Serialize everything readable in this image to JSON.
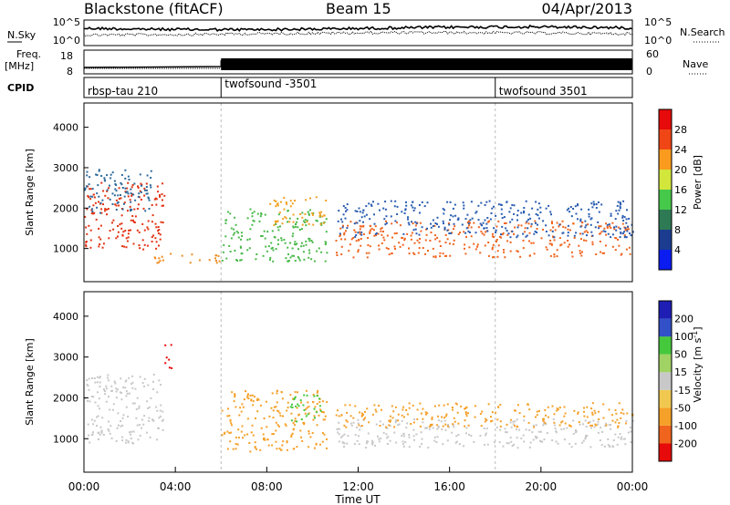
{
  "header": {
    "station": "Blackstone (fitACF)",
    "beam": "Beam 15",
    "date": "04/Apr/2013"
  },
  "strip_labels": {
    "nsky": "N.Sky",
    "nsearch": "N.Search",
    "freq_line1": "Freq.",
    "freq_line2": "[MHz]",
    "nave": "Nave",
    "cpid": "CPID"
  },
  "strip_ticks": {
    "noise_left": [
      "10^5",
      "10^0"
    ],
    "noise_right": [
      "10^5",
      "10^0"
    ],
    "freq_left": [
      "18",
      "8"
    ],
    "nave_right": [
      "60",
      "0"
    ]
  },
  "cpid_segments": [
    {
      "label": "rbsp-tau 210",
      "start_hour": 0
    },
    {
      "label": "twofsound -3501",
      "start_hour": 6
    },
    {
      "label": "twofsound 3501",
      "start_hour": 18
    }
  ],
  "chart_data": [
    {
      "type": "heatmap",
      "quantity": "Power",
      "ylabel": "Slant Range [km]",
      "ylim": [
        180,
        4600
      ],
      "yticks": [
        "1000",
        "2000",
        "3000",
        "4000"
      ],
      "xlim_hours": [
        0,
        24
      ],
      "colorbar_label": "Power [dB]",
      "colorbar_ticks": [
        "28",
        "24",
        "20",
        "16",
        "12",
        "8",
        "4"
      ],
      "colorbar_colors": [
        "#0a1cf0",
        "#1c3c90",
        "#2e7a54",
        "#46c84a",
        "#d2e63c",
        "#fa9b1e",
        "#f04616",
        "#e60a0a"
      ],
      "regions": [
        {
          "t0": 0.0,
          "t1": 3.5,
          "r0": 1000,
          "r1": 2700,
          "color": "#e23212",
          "note": "rising band"
        },
        {
          "t0": 0.0,
          "t1": 3.0,
          "r0": 1900,
          "r1": 3000,
          "color": "#2e6a9c"
        },
        {
          "t0": 3.0,
          "t1": 6.0,
          "r0": 650,
          "r1": 900,
          "color": "#f08c1e"
        },
        {
          "t0": 6.0,
          "t1": 10.6,
          "r0": 700,
          "r1": 2000,
          "color": "#4ab84a"
        },
        {
          "t0": 8.0,
          "t1": 10.6,
          "r0": 1600,
          "r1": 2300,
          "color": "#f0a020"
        },
        {
          "t0": 11.0,
          "t1": 24.0,
          "r0": 800,
          "r1": 1700,
          "color": "#f0641e"
        },
        {
          "t0": 11.0,
          "t1": 24.0,
          "r0": 1300,
          "r1": 2200,
          "color": "#2a5cb0"
        }
      ]
    },
    {
      "type": "heatmap",
      "quantity": "Velocity",
      "ylabel": "Slant Range [km]",
      "ylim": [
        180,
        4600
      ],
      "yticks": [
        "1000",
        "2000",
        "3000",
        "4000"
      ],
      "xlabel": "Time UT",
      "xticks": [
        "00:00",
        "04:00",
        "08:00",
        "12:00",
        "16:00",
        "20:00",
        "00:00"
      ],
      "xlim_hours": [
        0,
        24
      ],
      "colorbar_label": "Velocity [m s",
      "colorbar_label_sup": "-1",
      "colorbar_label_end": "]",
      "colorbar_ticks": [
        "200",
        "100",
        "50",
        "15",
        "-15",
        "-50",
        "-100",
        "-200"
      ],
      "colorbar_colors": [
        "#e60a0a",
        "#f0641e",
        "#f5a028",
        "#f0c850",
        "#c8c8c8",
        "#a0d264",
        "#46c83c",
        "#3250c8",
        "#1e1eb4"
      ],
      "regions": [
        {
          "t0": 0.0,
          "t1": 3.5,
          "r0": 900,
          "r1": 2600,
          "color": "#c8c8c8"
        },
        {
          "t0": 3.5,
          "t1": 3.8,
          "r0": 2600,
          "r1": 3400,
          "color": "#e60a0a"
        },
        {
          "t0": 6.0,
          "t1": 10.6,
          "r0": 700,
          "r1": 2200,
          "color": "#f5a028"
        },
        {
          "t0": 9.0,
          "t1": 10.4,
          "r0": 1400,
          "r1": 2100,
          "color": "#46c83c"
        },
        {
          "t0": 11.0,
          "t1": 24.0,
          "r0": 800,
          "r1": 1500,
          "color": "#c8c8c8"
        },
        {
          "t0": 11.0,
          "t1": 24.0,
          "r0": 1300,
          "r1": 1900,
          "color": "#f5a028"
        }
      ]
    }
  ]
}
